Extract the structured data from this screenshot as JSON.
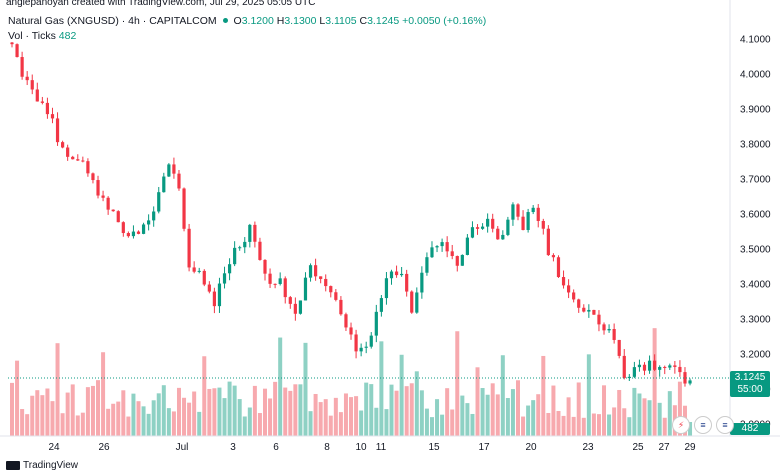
{
  "header": {
    "caption": "angiepanoyan created with TradingView.com, Jul 29, 2025 05:05 UTC"
  },
  "legend": {
    "symbol": "Natural Gas (XNGUSD) · 4h · CAPITALCOM",
    "o_label": "O",
    "o_value": "3.1200",
    "h_label": "H",
    "h_value": "3.1300",
    "l_label": "L",
    "l_value": "3.1105",
    "c_label": "C",
    "c_value": "3.1245",
    "change": "+0.0050 (+0.16%)",
    "vol_label": "Vol · Ticks",
    "vol_value": "482"
  },
  "price_tag": {
    "price": "3.1245",
    "countdown": "55:00"
  },
  "vol_tag": "482",
  "brand": "TradingView",
  "colors": {
    "up": "#089981",
    "down": "#F23645",
    "vol_up": "#8ED1C4",
    "vol_down": "#F7A9AE"
  },
  "event_icons": [
    "alert-icon",
    "us-flag-icon",
    "us-flag-icon"
  ],
  "chart_data": {
    "type": "candlestick",
    "symbol": "XNGUSD",
    "timeframe": "4h",
    "ylim": [
      2.99,
      4.12
    ],
    "yticks": [
      "4.1000",
      "4.0000",
      "3.9000",
      "3.8000",
      "3.7000",
      "3.6000",
      "3.5000",
      "3.4000",
      "3.3000",
      "3.2000",
      "3.1000",
      "3.0000"
    ],
    "xticks": [
      "24",
      "26",
      "Jul",
      "3",
      "6",
      "8",
      "10",
      "11",
      "15",
      "17",
      "20",
      "23",
      "25",
      "27",
      "29"
    ],
    "grid": false,
    "anchors": [
      [
        0,
        4.08
      ],
      [
        2,
        4.0
      ],
      [
        5,
        3.93
      ],
      [
        8,
        3.86
      ],
      [
        10,
        3.78
      ],
      [
        13,
        3.76
      ],
      [
        16,
        3.69
      ],
      [
        19,
        3.62
      ],
      [
        22,
        3.55
      ],
      [
        25,
        3.54
      ],
      [
        28,
        3.61
      ],
      [
        31,
        3.74
      ],
      [
        33,
        3.66
      ],
      [
        35,
        3.46
      ],
      [
        38,
        3.41
      ],
      [
        40,
        3.35
      ],
      [
        43,
        3.47
      ],
      [
        47,
        3.56
      ],
      [
        50,
        3.42
      ],
      [
        53,
        3.4
      ],
      [
        56,
        3.3
      ],
      [
        59,
        3.46
      ],
      [
        62,
        3.38
      ],
      [
        65,
        3.33
      ],
      [
        68,
        3.2
      ],
      [
        71,
        3.25
      ],
      [
        74,
        3.43
      ],
      [
        77,
        3.42
      ],
      [
        79,
        3.32
      ],
      [
        82,
        3.48
      ],
      [
        85,
        3.51
      ],
      [
        88,
        3.46
      ],
      [
        91,
        3.56
      ],
      [
        94,
        3.58
      ],
      [
        96,
        3.52
      ],
      [
        99,
        3.62
      ],
      [
        101,
        3.56
      ],
      [
        103,
        3.63
      ],
      [
        106,
        3.5
      ],
      [
        109,
        3.4
      ],
      [
        112,
        3.34
      ],
      [
        115,
        3.3
      ],
      [
        118,
        3.27
      ],
      [
        121,
        3.14
      ],
      [
        124,
        3.16
      ],
      [
        127,
        3.17
      ],
      [
        130,
        3.16
      ],
      [
        133,
        3.12
      ],
      [
        134,
        3.1245
      ]
    ],
    "last": {
      "open": 3.12,
      "high": 3.13,
      "low": 3.1105,
      "close": 3.1245
    },
    "volume": {
      "last": 482,
      "unit": "Ticks"
    }
  }
}
